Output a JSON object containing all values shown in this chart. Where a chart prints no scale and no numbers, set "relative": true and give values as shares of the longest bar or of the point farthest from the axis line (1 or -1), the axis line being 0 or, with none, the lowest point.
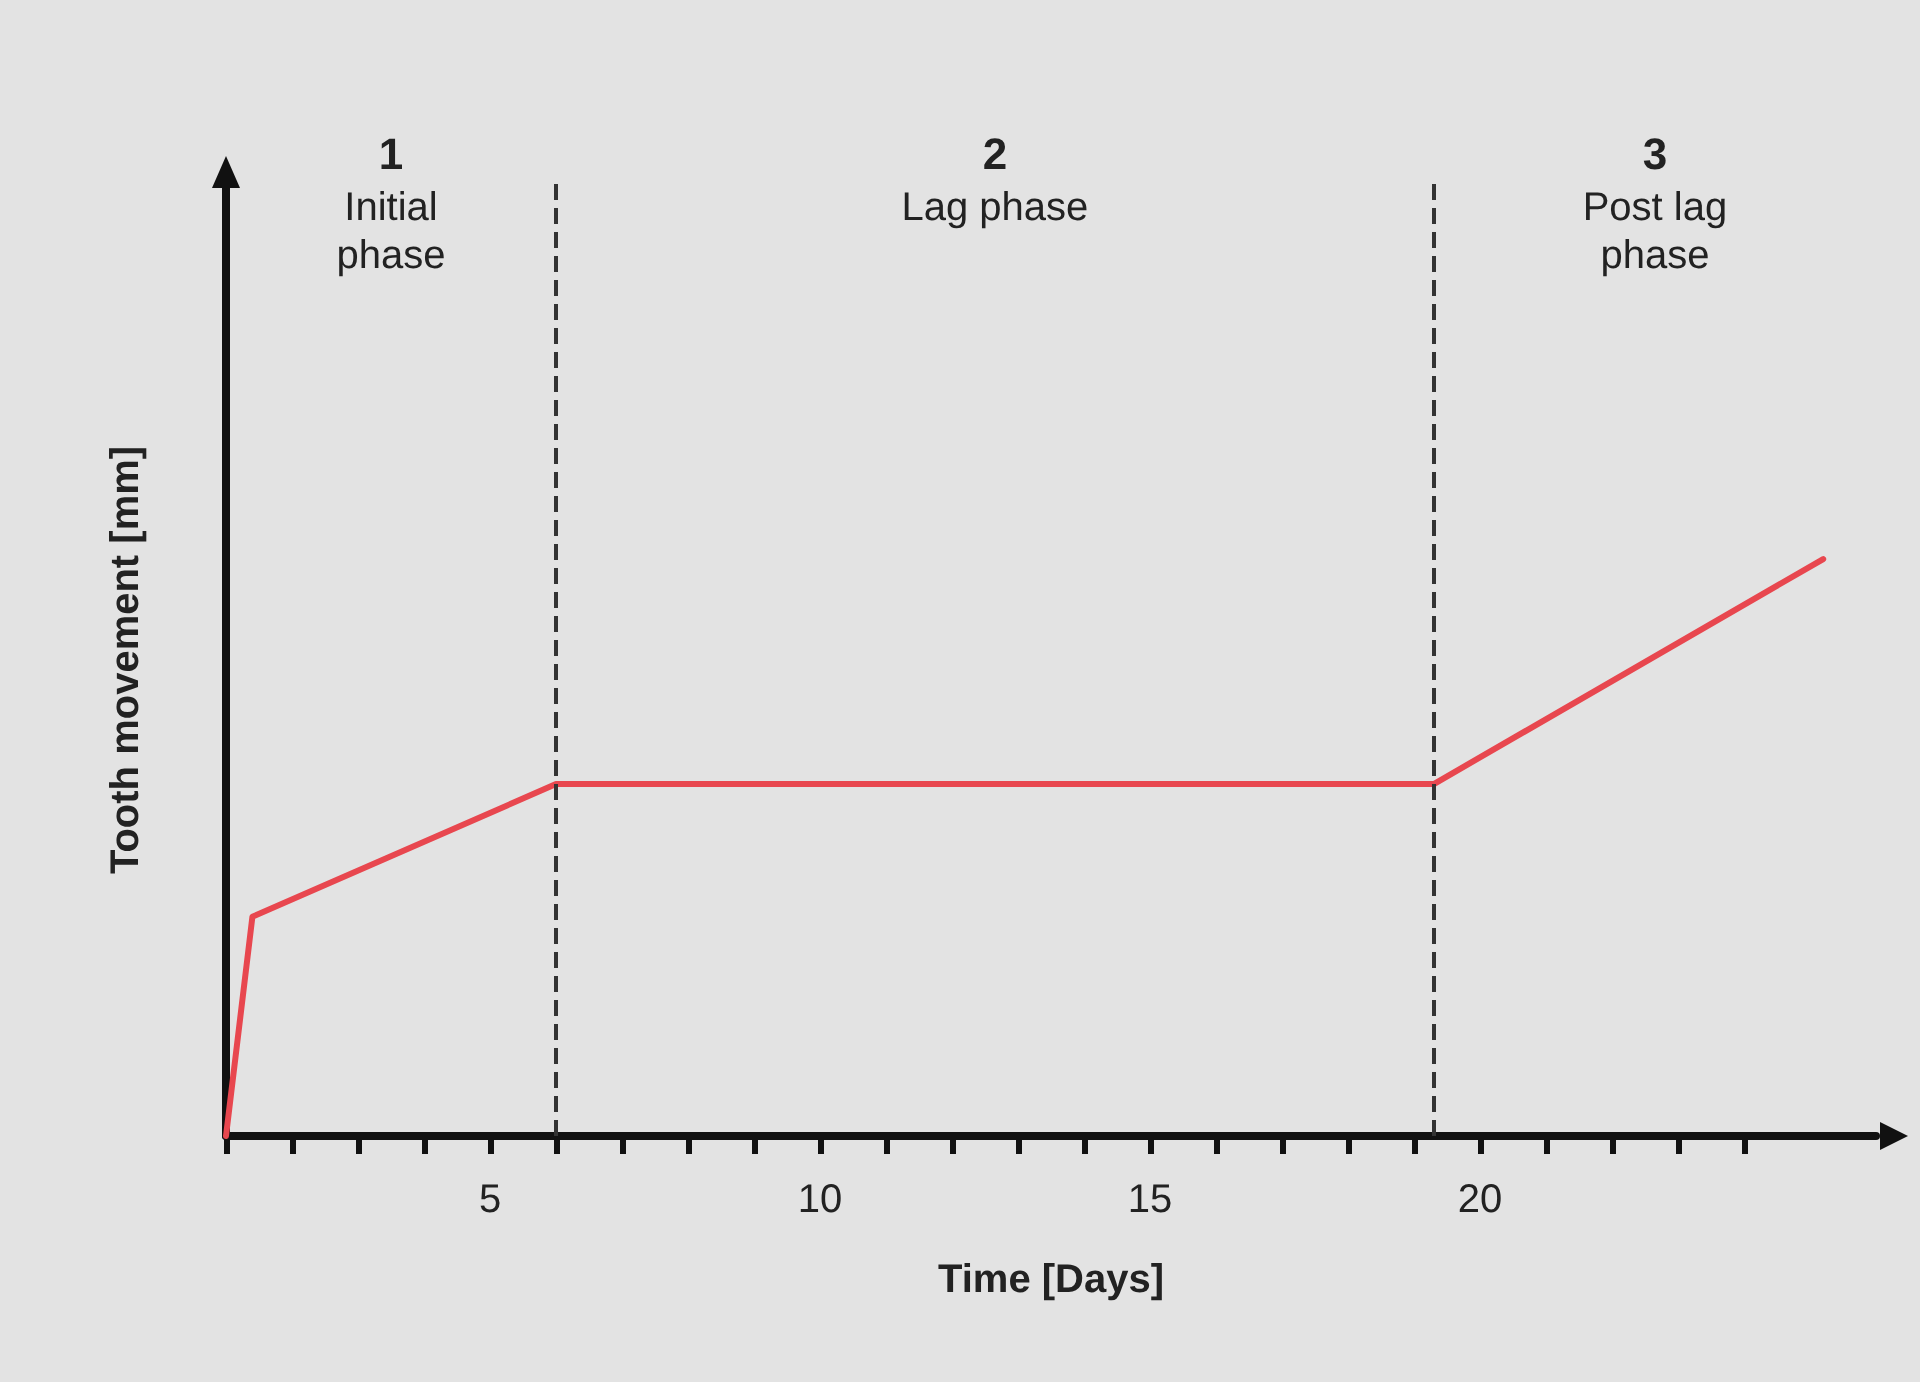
{
  "chart_data": {
    "type": "line",
    "xlabel": "Time [Days]",
    "ylabel": "Tooth movement [mm]",
    "relative": true,
    "x": [
      1,
      1.4,
      6,
      19.3,
      25.2
    ],
    "series": [
      {
        "color": "#e8474f",
        "values": [
          0,
          0.38,
          0.61,
          0.61,
          1
        ]
      }
    ],
    "xlim": [
      1,
      26
    ],
    "xticks": [
      {
        "value": 1,
        "label": null
      },
      {
        "value": 2,
        "label": null
      },
      {
        "value": 3,
        "label": null
      },
      {
        "value": 4,
        "label": null
      },
      5,
      {
        "value": 6,
        "label": null
      },
      {
        "value": 7,
        "label": null
      },
      {
        "value": 8,
        "label": null
      },
      {
        "value": 9,
        "label": null
      },
      10,
      {
        "value": 11,
        "label": null
      },
      {
        "value": 12,
        "label": null
      },
      {
        "value": 13,
        "label": null
      },
      {
        "value": 14,
        "label": null
      },
      15,
      {
        "value": 16,
        "label": null
      },
      {
        "value": 17,
        "label": null
      },
      {
        "value": 18,
        "label": null
      },
      {
        "value": 19,
        "label": null
      },
      20,
      {
        "value": 21,
        "label": null
      },
      {
        "value": 22,
        "label": null
      },
      {
        "value": 23,
        "label": null
      },
      {
        "value": 24,
        "label": null
      }
    ],
    "ref_lines": [
      {
        "axis": "x",
        "value": 6,
        "color": "#333333",
        "line_style": "dashed"
      },
      {
        "axis": "x",
        "value": 19.3,
        "color": "#333333",
        "line_style": "dashed"
      }
    ],
    "annotations": [
      "1\nInitial\nphase",
      "2\nLag phase",
      "3\nPost lag\nphase"
    ],
    "grid": false,
    "marker": "none",
    "line_style": "solid"
  }
}
